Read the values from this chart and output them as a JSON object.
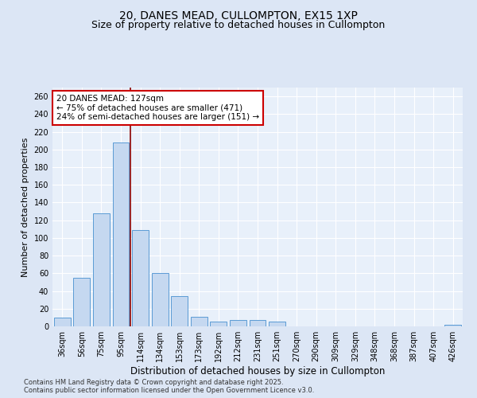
{
  "title_line1": "20, DANES MEAD, CULLOMPTON, EX15 1XP",
  "title_line2": "Size of property relative to detached houses in Cullompton",
  "xlabel": "Distribution of detached houses by size in Cullompton",
  "ylabel": "Number of detached properties",
  "categories": [
    "36sqm",
    "56sqm",
    "75sqm",
    "95sqm",
    "114sqm",
    "134sqm",
    "153sqm",
    "173sqm",
    "192sqm",
    "212sqm",
    "231sqm",
    "251sqm",
    "270sqm",
    "290sqm",
    "309sqm",
    "329sqm",
    "348sqm",
    "368sqm",
    "387sqm",
    "407sqm",
    "426sqm"
  ],
  "values": [
    10,
    55,
    128,
    208,
    109,
    60,
    34,
    11,
    5,
    7,
    7,
    5,
    0,
    0,
    0,
    0,
    0,
    0,
    0,
    0,
    2
  ],
  "bar_color": "#c5d8f0",
  "bar_edge_color": "#5b9bd5",
  "vline_x": 3.5,
  "vline_color": "#8b0000",
  "annotation_text": "20 DANES MEAD: 127sqm\n← 75% of detached houses are smaller (471)\n24% of semi-detached houses are larger (151) →",
  "annotation_box_color": "white",
  "annotation_box_edge_color": "#cc0000",
  "ylim": [
    0,
    270
  ],
  "yticks": [
    0,
    20,
    40,
    60,
    80,
    100,
    120,
    140,
    160,
    180,
    200,
    220,
    240,
    260
  ],
  "bg_color": "#dce6f5",
  "plot_bg_color": "#e8f0fa",
  "grid_color": "#ffffff",
  "footnote": "Contains HM Land Registry data © Crown copyright and database right 2025.\nContains public sector information licensed under the Open Government Licence v3.0.",
  "title_fontsize": 10,
  "subtitle_fontsize": 9,
  "xlabel_fontsize": 8.5,
  "ylabel_fontsize": 8,
  "tick_fontsize": 7,
  "annotation_fontsize": 7.5,
  "footnote_fontsize": 6
}
